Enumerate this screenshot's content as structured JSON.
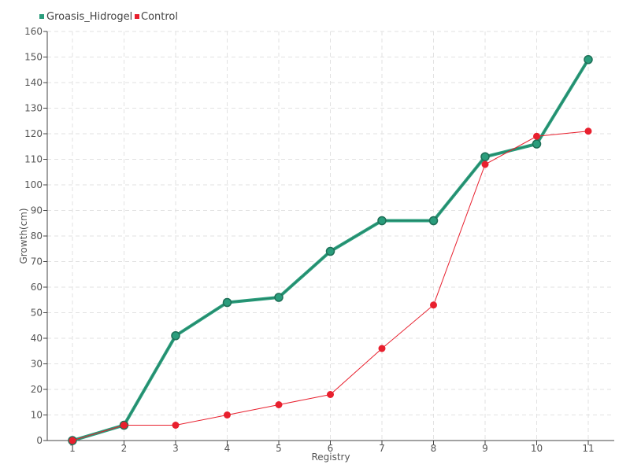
{
  "chart_data": {
    "type": "line",
    "title": "",
    "xlabel": "Registry",
    "ylabel": "Growth(cm)",
    "categories": [
      "1",
      "2",
      "3",
      "4",
      "5",
      "6",
      "7",
      "8",
      "9",
      "10",
      "11"
    ],
    "ylim": [
      0,
      160
    ],
    "yticks": [
      0,
      10,
      20,
      30,
      40,
      50,
      60,
      70,
      80,
      90,
      100,
      110,
      120,
      130,
      140,
      150,
      160
    ],
    "grid": true,
    "legend_position": "top-left",
    "series": [
      {
        "name": "Groasis_Hidrogel",
        "color": "#2a9d7c",
        "values": [
          0,
          6,
          41,
          54,
          56,
          74,
          86,
          86,
          111,
          116,
          149
        ]
      },
      {
        "name": "Control",
        "color": "#e8202e",
        "values": [
          0,
          6,
          6,
          10,
          14,
          18,
          36,
          53,
          108,
          119,
          121
        ]
      }
    ]
  }
}
